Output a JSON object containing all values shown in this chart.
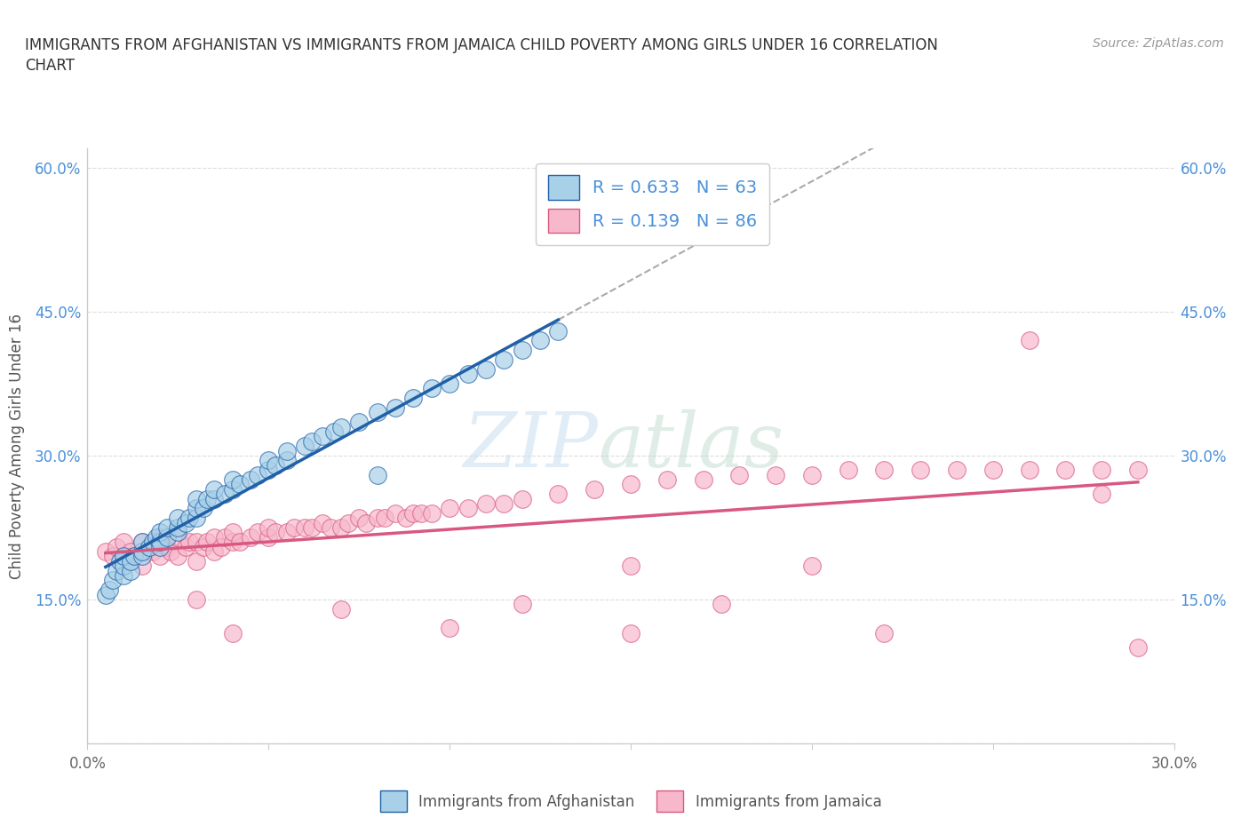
{
  "title_line1": "IMMIGRANTS FROM AFGHANISTAN VS IMMIGRANTS FROM JAMAICA CHILD POVERTY AMONG GIRLS UNDER 16 CORRELATION",
  "title_line2": "CHART",
  "source_text": "Source: ZipAtlas.com",
  "ylabel": "Child Poverty Among Girls Under 16",
  "legend_labels": [
    "Immigrants from Afghanistan",
    "Immigrants from Jamaica"
  ],
  "R_afghanistan": 0.633,
  "N_afghanistan": 63,
  "R_jamaica": 0.139,
  "N_jamaica": 86,
  "color_afghanistan": "#a8d0e8",
  "color_jamaica": "#f7b8cc",
  "line_color_afghanistan": "#2060a8",
  "line_color_jamaica": "#d85880",
  "xlim": [
    0.0,
    0.3
  ],
  "ylim": [
    0.0,
    0.62
  ],
  "x_tick_positions": [
    0.0,
    0.05,
    0.1,
    0.15,
    0.2,
    0.25,
    0.3
  ],
  "x_tick_labels": [
    "0.0%",
    "",
    "",
    "",
    "",
    "",
    "30.0%"
  ],
  "y_tick_positions": [
    0.0,
    0.15,
    0.3,
    0.45,
    0.6
  ],
  "y_tick_labels_left": [
    "",
    "15.0%",
    "30.0%",
    "45.0%",
    "60.0%"
  ],
  "y_tick_labels_right": [
    "",
    "15.0%",
    "30.0%",
    "45.0%",
    "60.0%"
  ],
  "watermark_zip": "ZIP",
  "watermark_atlas": "atlas",
  "background_color": "#ffffff",
  "grid_color": "#dddddd",
  "afghanistan_x": [
    0.005,
    0.006,
    0.007,
    0.008,
    0.009,
    0.01,
    0.01,
    0.01,
    0.012,
    0.012,
    0.013,
    0.015,
    0.015,
    0.015,
    0.017,
    0.018,
    0.019,
    0.02,
    0.02,
    0.02,
    0.022,
    0.022,
    0.025,
    0.025,
    0.025,
    0.027,
    0.028,
    0.03,
    0.03,
    0.03,
    0.032,
    0.033,
    0.035,
    0.035,
    0.038,
    0.04,
    0.04,
    0.042,
    0.045,
    0.047,
    0.05,
    0.05,
    0.052,
    0.055,
    0.055,
    0.06,
    0.062,
    0.065,
    0.068,
    0.07,
    0.075,
    0.08,
    0.085,
    0.09,
    0.095,
    0.1,
    0.105,
    0.11,
    0.115,
    0.12,
    0.125,
    0.13,
    0.08
  ],
  "afghanistan_y": [
    0.155,
    0.16,
    0.17,
    0.18,
    0.19,
    0.175,
    0.185,
    0.195,
    0.18,
    0.19,
    0.195,
    0.195,
    0.2,
    0.21,
    0.205,
    0.21,
    0.215,
    0.205,
    0.21,
    0.22,
    0.215,
    0.225,
    0.22,
    0.225,
    0.235,
    0.23,
    0.235,
    0.235,
    0.245,
    0.255,
    0.245,
    0.255,
    0.255,
    0.265,
    0.26,
    0.265,
    0.275,
    0.27,
    0.275,
    0.28,
    0.285,
    0.295,
    0.29,
    0.295,
    0.305,
    0.31,
    0.315,
    0.32,
    0.325,
    0.33,
    0.335,
    0.345,
    0.35,
    0.36,
    0.37,
    0.375,
    0.385,
    0.39,
    0.4,
    0.41,
    0.42,
    0.43,
    0.28
  ],
  "jamaica_x": [
    0.005,
    0.007,
    0.008,
    0.01,
    0.01,
    0.012,
    0.013,
    0.015,
    0.015,
    0.018,
    0.02,
    0.02,
    0.022,
    0.023,
    0.025,
    0.025,
    0.027,
    0.028,
    0.03,
    0.03,
    0.032,
    0.033,
    0.035,
    0.035,
    0.037,
    0.038,
    0.04,
    0.04,
    0.042,
    0.045,
    0.047,
    0.05,
    0.05,
    0.052,
    0.055,
    0.057,
    0.06,
    0.062,
    0.065,
    0.067,
    0.07,
    0.072,
    0.075,
    0.077,
    0.08,
    0.082,
    0.085,
    0.088,
    0.09,
    0.092,
    0.095,
    0.1,
    0.105,
    0.11,
    0.115,
    0.12,
    0.13,
    0.14,
    0.15,
    0.16,
    0.17,
    0.18,
    0.19,
    0.2,
    0.21,
    0.22,
    0.23,
    0.24,
    0.25,
    0.26,
    0.27,
    0.28,
    0.29,
    0.03,
    0.07,
    0.12,
    0.175,
    0.04,
    0.1,
    0.15,
    0.22,
    0.28,
    0.29,
    0.26,
    0.15,
    0.2
  ],
  "jamaica_y": [
    0.2,
    0.195,
    0.205,
    0.19,
    0.21,
    0.2,
    0.195,
    0.185,
    0.21,
    0.2,
    0.195,
    0.215,
    0.205,
    0.2,
    0.195,
    0.215,
    0.205,
    0.21,
    0.19,
    0.21,
    0.205,
    0.21,
    0.2,
    0.215,
    0.205,
    0.215,
    0.21,
    0.22,
    0.21,
    0.215,
    0.22,
    0.215,
    0.225,
    0.22,
    0.22,
    0.225,
    0.225,
    0.225,
    0.23,
    0.225,
    0.225,
    0.23,
    0.235,
    0.23,
    0.235,
    0.235,
    0.24,
    0.235,
    0.24,
    0.24,
    0.24,
    0.245,
    0.245,
    0.25,
    0.25,
    0.255,
    0.26,
    0.265,
    0.27,
    0.275,
    0.275,
    0.28,
    0.28,
    0.28,
    0.285,
    0.285,
    0.285,
    0.285,
    0.285,
    0.285,
    0.285,
    0.285,
    0.285,
    0.15,
    0.14,
    0.145,
    0.145,
    0.115,
    0.12,
    0.115,
    0.115,
    0.26,
    0.1,
    0.42,
    0.185,
    0.185
  ]
}
